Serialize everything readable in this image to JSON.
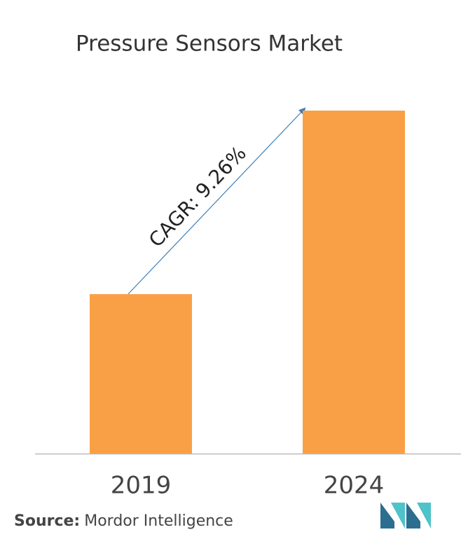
{
  "chart_data": {
    "type": "bar",
    "title": "Pressure Sensors Market",
    "categories": [
      "2019",
      "2024"
    ],
    "values": [
      46.5,
      100
    ],
    "color": "#f9a046",
    "ylim": [
      0,
      100
    ],
    "annotation": "CAGR: 9.26%",
    "source_label": "Source:",
    "source": "Mordor Intelligence"
  }
}
